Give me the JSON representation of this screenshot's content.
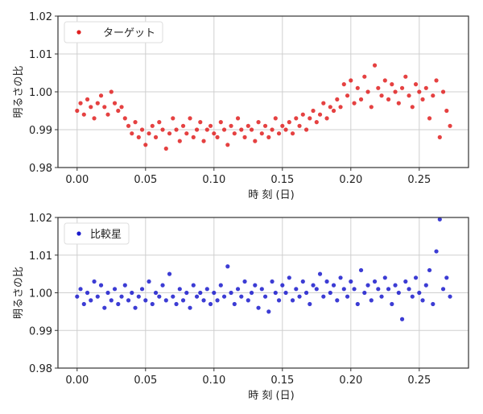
{
  "chart_data": [
    {
      "type": "scatter",
      "xlabel": "時 刻 (日)",
      "ylabel": "明るさの比",
      "xlim": [
        -0.014,
        0.286
      ],
      "ylim": [
        0.98,
        1.02
      ],
      "xticks": [
        "0.00",
        "0.05",
        "0.10",
        "0.15",
        "0.20",
        "0.25"
      ],
      "yticks": [
        "0.98",
        "0.99",
        "1.00",
        "1.01",
        "1.02"
      ],
      "grid": true,
      "legend_position": "top-left",
      "series": [
        {
          "name": "ターゲット",
          "color": "#e02020",
          "y": [
            0.995,
            0.997,
            0.994,
            0.998,
            0.996,
            0.993,
            0.997,
            0.999,
            0.996,
            0.994,
            1.0,
            0.997,
            0.995,
            0.996,
            0.993,
            0.991,
            0.989,
            0.992,
            0.988,
            0.99,
            0.986,
            0.989,
            0.991,
            0.988,
            0.992,
            0.99,
            0.985,
            0.989,
            0.993,
            0.99,
            0.987,
            0.991,
            0.989,
            0.993,
            0.988,
            0.99,
            0.992,
            0.987,
            0.99,
            0.991,
            0.989,
            0.988,
            0.992,
            0.99,
            0.986,
            0.991,
            0.989,
            0.993,
            0.99,
            0.988,
            0.991,
            0.99,
            0.987,
            0.992,
            0.989,
            0.991,
            0.988,
            0.99,
            0.993,
            0.989,
            0.991,
            0.99,
            0.992,
            0.989,
            0.993,
            0.991,
            0.994,
            0.99,
            0.993,
            0.995,
            0.992,
            0.994,
            0.997,
            0.993,
            0.996,
            0.995,
            0.998,
            0.996,
            1.002,
            0.999,
            1.003,
            0.997,
            1.001,
            0.998,
            1.004,
            1.0,
            0.996,
            1.007,
            1.001,
            0.999,
            1.003,
            0.998,
            1.002,
            1.0,
            0.997,
            1.001,
            1.004,
            0.999,
            0.996,
            1.002,
            1.0,
            0.998,
            1.001,
            0.993,
            0.999,
            1.003,
            0.988,
            1.0,
            0.995,
            0.991
          ]
        }
      ]
    },
    {
      "type": "scatter",
      "xlabel": "時 刻 (日)",
      "ylabel": "明るさの比",
      "xlim": [
        -0.014,
        0.286
      ],
      "ylim": [
        0.98,
        1.02
      ],
      "xticks": [
        "0.00",
        "0.05",
        "0.10",
        "0.15",
        "0.20",
        "0.25"
      ],
      "yticks": [
        "0.98",
        "0.99",
        "1.00",
        "1.01",
        "1.02"
      ],
      "grid": true,
      "legend_position": "top-left",
      "series": [
        {
          "name": "比較星",
          "color": "#1a1acc",
          "y": [
            0.999,
            1.001,
            0.997,
            1.0,
            0.998,
            1.003,
            0.999,
            1.002,
            0.996,
            1.0,
            0.998,
            1.001,
            0.997,
            0.999,
            1.002,
            0.998,
            1.0,
            0.996,
            0.999,
            1.001,
            0.998,
            1.003,
            0.997,
            1.0,
            0.999,
            1.002,
            0.998,
            1.005,
            0.999,
            0.997,
            1.001,
            0.998,
            1.0,
            0.996,
            1.002,
            0.999,
            1.0,
            0.998,
            1.001,
            0.997,
            1.0,
            0.998,
            1.002,
            0.999,
            1.007,
            1.0,
            0.997,
            1.001,
            0.999,
            1.003,
            0.998,
            1.0,
            1.002,
            0.996,
            1.001,
            0.999,
            0.995,
            1.003,
            1.0,
            0.998,
            1.002,
            1.0,
            1.004,
            0.998,
            1.001,
            0.999,
            1.003,
            1.0,
            0.997,
            1.002,
            1.001,
            1.005,
            0.999,
            1.003,
            1.0,
            1.002,
            0.998,
            1.004,
            1.001,
            0.999,
            1.003,
            1.001,
            0.997,
            1.006,
            1.0,
            1.002,
            0.998,
            1.003,
            1.001,
            0.999,
            1.004,
            1.001,
            0.997,
            1.002,
            1.0,
            0.993,
            1.003,
            1.001,
            0.999,
            1.004,
            1.0,
            0.998,
            1.002,
            1.006,
            0.997,
            1.011,
            1.0195,
            1.001,
            1.004,
            0.999
          ]
        }
      ]
    }
  ],
  "x_values": [
    0,
    0.0025,
    0.005,
    0.0075,
    0.01,
    0.0125,
    0.015,
    0.0175,
    0.02,
    0.0225,
    0.025,
    0.0275,
    0.03,
    0.0325,
    0.035,
    0.0375,
    0.04,
    0.0425,
    0.045,
    0.0475,
    0.05,
    0.0525,
    0.055,
    0.0575,
    0.06,
    0.0625,
    0.065,
    0.0675,
    0.07,
    0.0725,
    0.075,
    0.0775,
    0.08,
    0.0825,
    0.085,
    0.0875,
    0.09,
    0.0925,
    0.095,
    0.0975,
    0.1,
    0.1025,
    0.105,
    0.1075,
    0.11,
    0.1125,
    0.115,
    0.1175,
    0.12,
    0.1225,
    0.125,
    0.1275,
    0.13,
    0.1325,
    0.135,
    0.1375,
    0.14,
    0.1425,
    0.145,
    0.1475,
    0.15,
    0.1525,
    0.155,
    0.1575,
    0.16,
    0.1625,
    0.165,
    0.1675,
    0.17,
    0.1725,
    0.175,
    0.1775,
    0.18,
    0.1825,
    0.185,
    0.1875,
    0.19,
    0.1925,
    0.195,
    0.1975,
    0.2,
    0.2025,
    0.205,
    0.2075,
    0.21,
    0.2125,
    0.215,
    0.2175,
    0.22,
    0.2225,
    0.225,
    0.2275,
    0.23,
    0.2325,
    0.235,
    0.2375,
    0.24,
    0.2425,
    0.245,
    0.2475,
    0.25,
    0.2525,
    0.255,
    0.2575,
    0.26,
    0.2625,
    0.265,
    0.2675,
    0.27,
    0.2725
  ]
}
